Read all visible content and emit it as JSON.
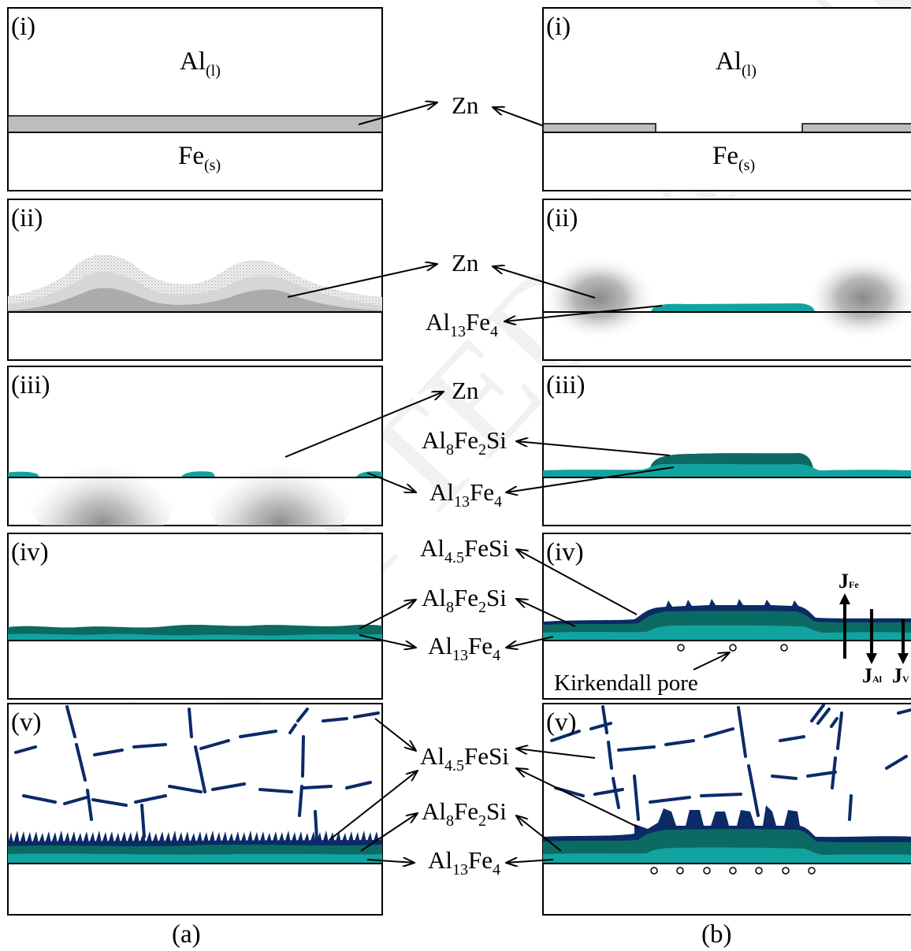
{
  "figure": {
    "column_a_caption": "(a)",
    "column_b_caption": "(b)",
    "watermark": "ACCEPTED MANUSCRIPT"
  },
  "panels": {
    "a": [
      "(i)",
      "(ii)",
      "(iii)",
      "(iv)",
      "(v)"
    ],
    "b": [
      "(i)",
      "(ii)",
      "(iii)",
      "(iv)",
      "(v)"
    ]
  },
  "phases": {
    "liquid_al": {
      "main": "Al",
      "sub": "(l)"
    },
    "solid_fe": {
      "main": "Fe",
      "sub": "(s)"
    }
  },
  "labels": {
    "zn": "Zn",
    "al13fe4": {
      "p1": "Al",
      "s1": "13",
      "p2": "Fe",
      "s2": "4"
    },
    "al8fe2si": {
      "p1": "Al",
      "s1": "8",
      "p2": "Fe",
      "s2": "2",
      "p3": "Si"
    },
    "al45fesi": {
      "p1": "Al",
      "s1": "4.5",
      "p2": "FeSi"
    },
    "kirkendall_pore": "Kirkendall pore",
    "flux_fe": {
      "main": "J",
      "sub": "Fe"
    },
    "flux_al": {
      "main": "J",
      "sub": "Al"
    },
    "flux_v": {
      "main": "J",
      "sub": "V"
    }
  },
  "colors": {
    "zn_layer": "#bdbdbd",
    "al13fe4": "#11a3a0",
    "al8fe2si": "#0b6a62",
    "al45fesi": "#0b2a66",
    "outline": "#000000"
  }
}
